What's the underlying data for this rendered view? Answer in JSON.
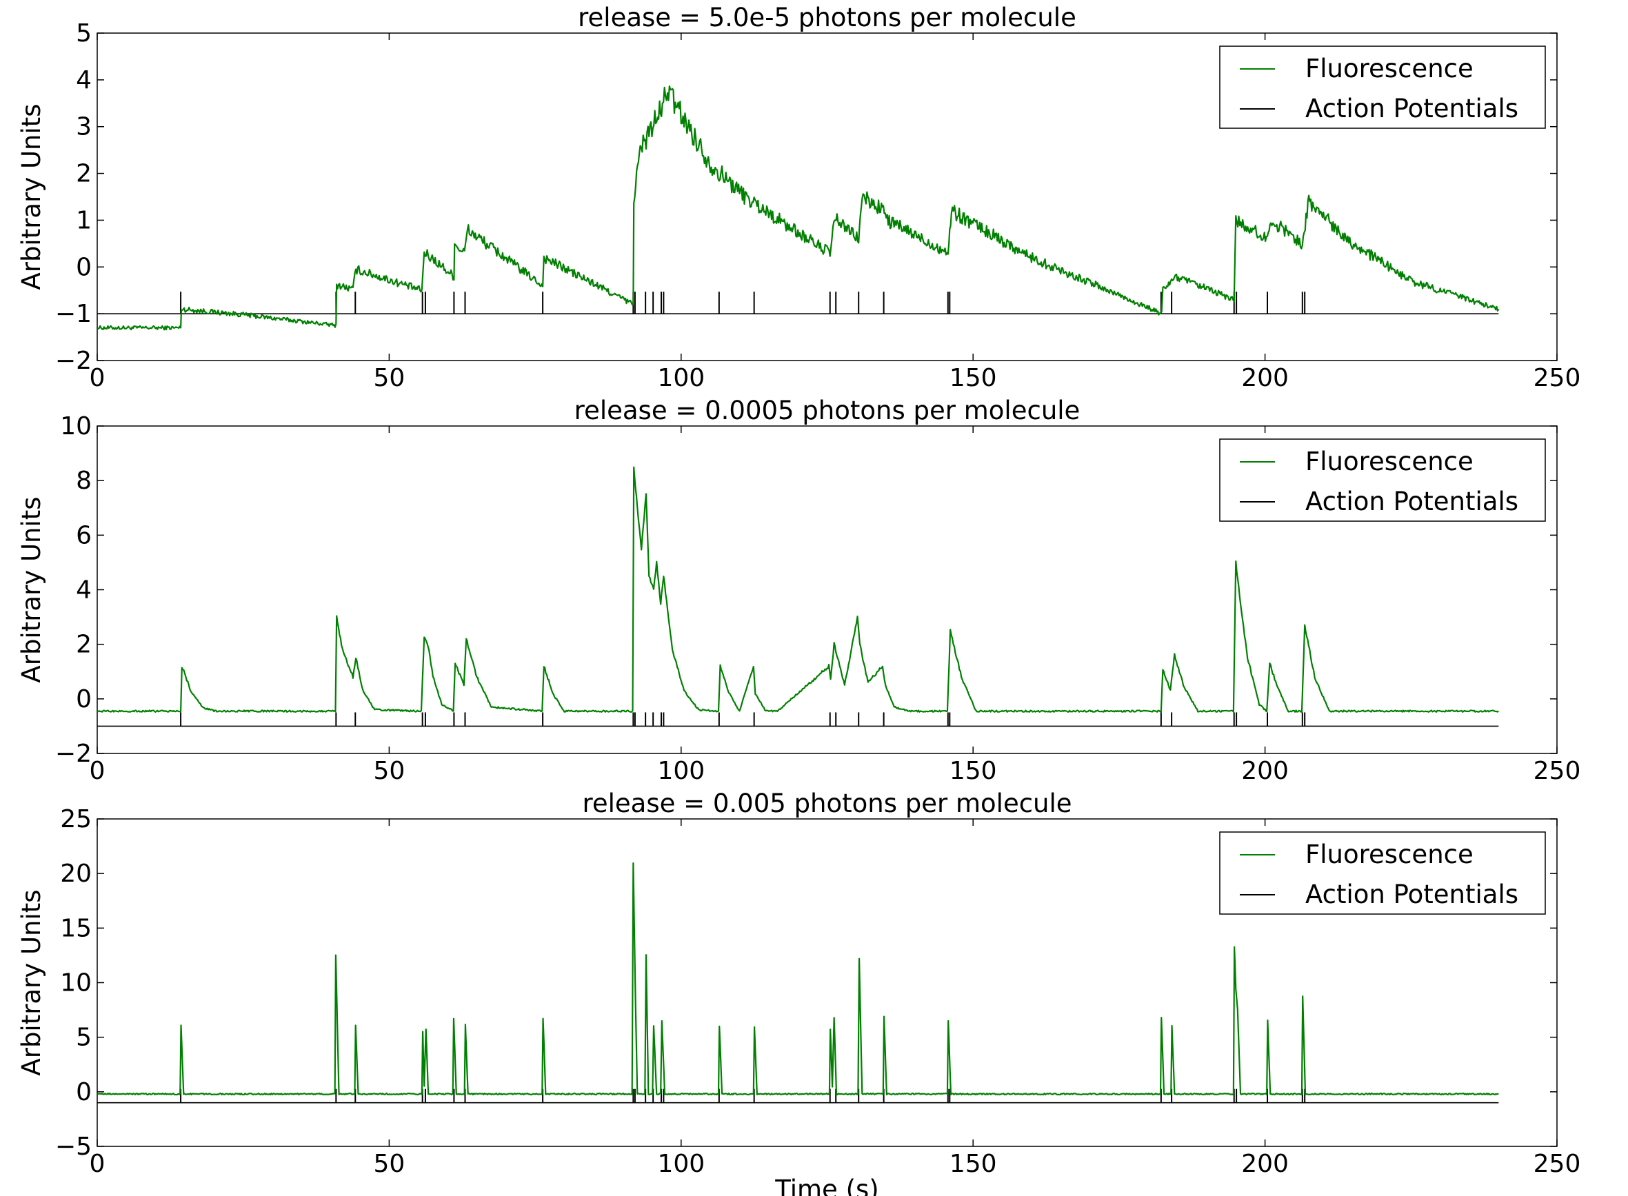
{
  "chart_data": [
    {
      "type": "line",
      "title": "release = 5.0e-5 photons per molecule",
      "xlabel": "",
      "ylabel": "Arbitrary Units",
      "xlim": [
        0,
        250
      ],
      "ylim": [
        -2,
        5
      ],
      "xticks": [
        0,
        50,
        100,
        150,
        200,
        250
      ],
      "xtick_labels": [
        "0",
        "50",
        "100",
        "150",
        "200",
        "250"
      ],
      "yticks": [
        -2,
        -1,
        0,
        1,
        2,
        3,
        4,
        5
      ],
      "ytick_labels": [
        "−2",
        "−1",
        "0",
        "1",
        "2",
        "3",
        "4",
        "5"
      ],
      "legend": {
        "position": "upper right",
        "entries": [
          {
            "label": "Fluorescence",
            "color": "#008000"
          },
          {
            "label": "Action Potentials",
            "color": "#000000"
          }
        ]
      },
      "spike_baseline": -1,
      "spike_height": 0.5,
      "series": [
        {
          "name": "Fluorescence",
          "color": "#008000",
          "x": [
            0,
            14.3,
            14.4,
            25,
            40.9,
            41.0,
            43.8,
            44.3,
            55.6,
            56.0,
            57.2,
            61.1,
            61.2,
            62.9,
            63.4,
            76.3,
            76.5,
            91.8,
            91.9,
            93.0,
            95.0,
            96.8,
            97.5,
            105.0,
            111.0,
            118.0,
            125.5,
            126.0,
            126.7,
            130.4,
            131.0,
            134.8,
            135.3,
            145.7,
            146.3,
            160.0,
            175.0,
            182.3,
            182.5,
            184.0,
            184.5,
            194.7,
            195.0,
            200.4,
            201.0,
            206.4,
            207.5,
            215.0,
            225.0,
            240.0
          ],
          "y": [
            -1.3,
            -1.3,
            -0.9,
            -1.02,
            -1.25,
            -0.38,
            -0.48,
            -0.05,
            -0.5,
            0.3,
            0.2,
            -0.2,
            0.5,
            0.3,
            0.8,
            -0.4,
            0.2,
            -0.8,
            1.5,
            2.5,
            3.0,
            3.4,
            3.8,
            2.2,
            1.5,
            0.9,
            0.3,
            0.8,
            1.0,
            0.6,
            1.5,
            1.2,
            1.0,
            0.3,
            1.2,
            0.2,
            -0.6,
            -1.0,
            -0.5,
            -0.3,
            -0.2,
            -0.7,
            1.0,
            0.6,
            1.0,
            0.5,
            1.4,
            0.5,
            -0.3,
            -0.9
          ]
        },
        {
          "name": "Action Potentials",
          "color": "#000000",
          "x": [
            0,
            240
          ],
          "y": [
            -1,
            -1
          ]
        }
      ]
    },
    {
      "type": "line",
      "title": "release = 0.0005 photons per molecule",
      "xlabel": "",
      "ylabel": "Arbitrary Units",
      "xlim": [
        0,
        250
      ],
      "ylim": [
        -2,
        10
      ],
      "xticks": [
        0,
        50,
        100,
        150,
        200,
        250
      ],
      "xtick_labels": [
        "0",
        "50",
        "100",
        "150",
        "200",
        "250"
      ],
      "yticks": [
        -2,
        0,
        2,
        4,
        6,
        8,
        10
      ],
      "ytick_labels": [
        "−2",
        "0",
        "2",
        "4",
        "6",
        "8",
        "10"
      ],
      "legend": {
        "position": "upper right",
        "entries": [
          {
            "label": "Fluorescence",
            "color": "#008000"
          },
          {
            "label": "Action Potentials",
            "color": "#000000"
          }
        ]
      },
      "spike_baseline": -1,
      "spike_height": 0.0,
      "series": [
        {
          "name": "Fluorescence",
          "color": "#008000",
          "x": [
            0,
            14.3,
            14.5,
            16.0,
            18.0,
            20.0,
            40.8,
            41.0,
            42.0,
            43.8,
            44.3,
            45.5,
            47.5,
            55.5,
            56.0,
            56.8,
            57.5,
            59.0,
            61.0,
            61.3,
            62.8,
            63.2,
            65.0,
            67.5,
            76.2,
            76.5,
            78.0,
            80.0,
            91.7,
            91.9,
            92.5,
            93.2,
            94.0,
            94.5,
            95.3,
            95.8,
            96.5,
            97.0,
            98.5,
            100.5,
            103.0,
            106.4,
            106.7,
            108.0,
            110.0,
            112.4,
            112.7,
            114.5,
            116.5,
            125.3,
            125.6,
            126.2,
            126.8,
            128.0,
            130.2,
            130.6,
            132.0,
            134.5,
            135.0,
            136.5,
            139.0,
            145.6,
            146.1,
            148.0,
            150.5,
            182.2,
            182.5,
            183.8,
            184.5,
            186.0,
            188.5,
            194.6,
            195.0,
            195.8,
            197.0,
            199.0,
            200.3,
            200.8,
            202.0,
            204.0,
            206.3,
            206.8,
            208.5,
            211.0,
            240.0
          ],
          "y": [
            -0.45,
            -0.45,
            1.2,
            0.3,
            -0.3,
            -0.45,
            -0.45,
            3.0,
            1.8,
            0.8,
            1.5,
            0.3,
            -0.4,
            -0.45,
            2.3,
            1.8,
            0.8,
            -0.2,
            -0.45,
            1.3,
            0.5,
            2.2,
            0.8,
            -0.3,
            -0.45,
            1.2,
            0.2,
            -0.45,
            -0.45,
            8.5,
            7.0,
            5.5,
            7.5,
            4.5,
            4.0,
            5.0,
            3.5,
            4.5,
            1.8,
            0.3,
            -0.4,
            -0.45,
            1.2,
            0.3,
            -0.45,
            1.2,
            0.2,
            -0.45,
            -0.45,
            1.2,
            0.7,
            2.0,
            1.5,
            0.5,
            3.0,
            2.0,
            0.6,
            1.2,
            0.5,
            -0.3,
            -0.45,
            -0.45,
            2.5,
            0.8,
            -0.45,
            -0.45,
            1.1,
            0.3,
            1.6,
            0.5,
            -0.45,
            -0.45,
            5.0,
            3.5,
            1.5,
            -0.2,
            -0.45,
            1.3,
            0.5,
            -0.45,
            -0.45,
            2.7,
            0.8,
            -0.45,
            -0.45
          ]
        },
        {
          "name": "Action Potentials",
          "color": "#000000",
          "x": [
            0,
            240
          ],
          "y": [
            -1,
            -1
          ]
        }
      ]
    },
    {
      "type": "line",
      "title": "release = 0.005 photons per molecule",
      "xlabel": "Time (s)",
      "ylabel": "Arbitrary Units",
      "xlim": [
        0,
        250
      ],
      "ylim": [
        -5,
        25
      ],
      "xticks": [
        0,
        50,
        100,
        150,
        200,
        250
      ],
      "xtick_labels": [
        "0",
        "50",
        "100",
        "150",
        "200",
        "250"
      ],
      "yticks": [
        -5,
        0,
        5,
        10,
        15,
        20,
        25
      ],
      "ytick_labels": [
        "−5",
        "0",
        "5",
        "10",
        "15",
        "20",
        "25"
      ],
      "legend": {
        "position": "upper right",
        "entries": [
          {
            "label": "Fluorescence",
            "color": "#008000"
          },
          {
            "label": "Action Potentials",
            "color": "#000000"
          }
        ]
      },
      "spike_baseline": -1,
      "spike_height": 0.0,
      "series": [
        {
          "name": "Fluorescence",
          "color": "#008000",
          "x": [
            0,
            14.2,
            14.35,
            14.8,
            40.7,
            40.85,
            41.4,
            44.1,
            44.25,
            44.7,
            55.6,
            55.75,
            56.0,
            56.3,
            56.7,
            60.9,
            61.05,
            61.5,
            62.9,
            63.05,
            63.5,
            76.2,
            76.35,
            76.8,
            91.6,
            91.8,
            92.2,
            92.5,
            93.8,
            94.0,
            94.4,
            95.1,
            95.3,
            95.8,
            96.5,
            96.7,
            97.2,
            106.4,
            106.55,
            107.0,
            112.4,
            112.55,
            113.0,
            125.4,
            125.55,
            125.9,
            126.2,
            126.6,
            130.3,
            130.5,
            131.0,
            134.6,
            134.75,
            135.2,
            145.6,
            145.75,
            146.2,
            182.1,
            182.25,
            182.7,
            183.9,
            184.05,
            184.5,
            194.6,
            194.75,
            195.0,
            195.3,
            195.8,
            200.3,
            200.45,
            200.9,
            206.3,
            206.45,
            206.9,
            240.0
          ],
          "y": [
            -0.2,
            -0.2,
            6.0,
            -0.2,
            -0.2,
            12.5,
            -0.2,
            -0.2,
            6.0,
            -0.2,
            -0.2,
            5.5,
            0.5,
            5.8,
            -0.2,
            -0.2,
            6.8,
            -0.2,
            -0.2,
            6.2,
            -0.2,
            -0.2,
            6.8,
            -0.2,
            -0.2,
            21.0,
            8.0,
            -0.2,
            -0.2,
            12.5,
            -0.2,
            -0.2,
            6.0,
            -0.2,
            -0.2,
            6.5,
            -0.2,
            -0.2,
            6.0,
            -0.2,
            -0.2,
            6.0,
            -0.2,
            -0.2,
            5.8,
            0.5,
            6.8,
            -0.2,
            -0.2,
            12.2,
            -0.2,
            -0.2,
            6.8,
            -0.2,
            -0.2,
            6.5,
            -0.2,
            -0.2,
            6.8,
            -0.2,
            -0.2,
            6.0,
            -0.2,
            -0.2,
            13.2,
            9.5,
            7.5,
            -0.2,
            -0.2,
            6.5,
            -0.2,
            -0.2,
            8.8,
            -0.2,
            -0.2
          ]
        },
        {
          "name": "Action Potentials",
          "color": "#000000",
          "x": [
            0,
            240
          ],
          "y": [
            -1,
            -1
          ]
        }
      ]
    }
  ],
  "spike_times": [
    14.3,
    40.9,
    44.2,
    55.7,
    56.2,
    61.1,
    63.0,
    76.3,
    91.8,
    92.1,
    93.9,
    95.2,
    96.6,
    97.0,
    106.5,
    112.5,
    125.5,
    126.5,
    130.4,
    134.7,
    145.7,
    146.0,
    182.2,
    184.0,
    194.7,
    195.1,
    200.4,
    206.4,
    206.8
  ]
}
